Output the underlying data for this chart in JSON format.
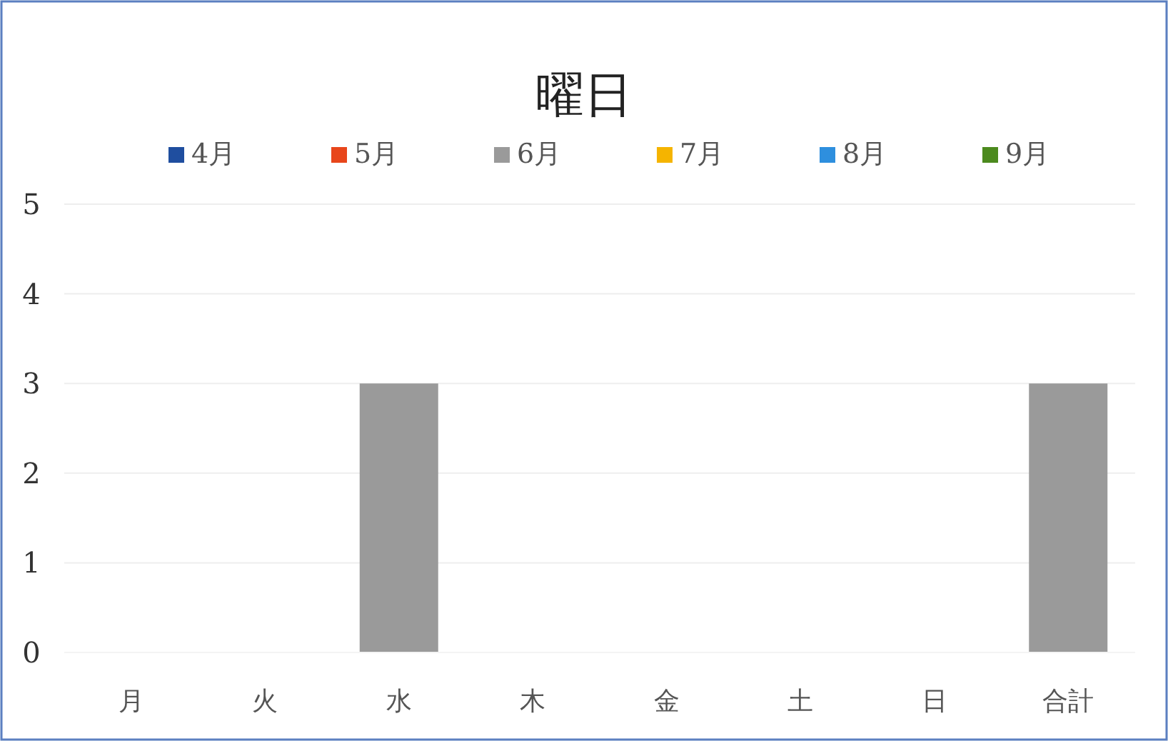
{
  "chart_data": {
    "type": "bar",
    "title": "曜日",
    "stacked": true,
    "categories": [
      "月",
      "火",
      "水",
      "木",
      "金",
      "土",
      "日",
      "合計"
    ],
    "series": [
      {
        "name": "4月",
        "color": "#1f4e9f",
        "values": [
          0,
          0,
          0,
          0,
          0,
          0,
          0,
          0
        ]
      },
      {
        "name": "5月",
        "color": "#e8461b",
        "values": [
          0,
          0,
          0,
          0,
          0,
          0,
          0,
          0
        ]
      },
      {
        "name": "6月",
        "color": "#9a9a9a",
        "values": [
          0,
          0,
          3,
          0,
          0,
          0,
          0,
          3
        ]
      },
      {
        "name": "7月",
        "color": "#f5b400",
        "values": [
          0,
          0,
          0,
          0,
          0,
          0,
          0,
          0
        ]
      },
      {
        "name": "8月",
        "color": "#2e8fde",
        "values": [
          0,
          0,
          0,
          0,
          0,
          0,
          0,
          0
        ]
      },
      {
        "name": "9月",
        "color": "#4c8a1e",
        "values": [
          0,
          0,
          0,
          0,
          0,
          0,
          0,
          0
        ]
      }
    ],
    "ylim": [
      0,
      5
    ],
    "yticks": [
      0,
      1,
      2,
      3,
      4,
      5
    ],
    "grid": "y",
    "legend": "top"
  }
}
